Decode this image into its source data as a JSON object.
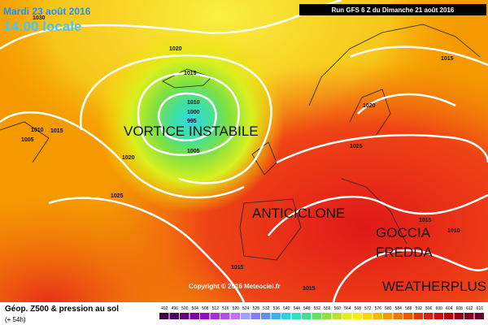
{
  "header": {
    "date": "Mardi 23 août 2016",
    "time": "14:00 locale",
    "run": "Run GFS 6 Z du Dimanche 21 août 2016"
  },
  "annotations": {
    "vortex": "VORTICE INSTABILE",
    "anticyclone": "ANTICICLONE",
    "cold_drop_1": "GOCCIA",
    "cold_drop_2": "FREDDA",
    "brand": "WEATHERPLUS",
    "copyright": "Copyright © 2016 Meteociel.fr"
  },
  "isobar_labels": [
    "1030",
    "1020",
    "1015",
    "1010",
    "1000",
    "995",
    "1005",
    "1010",
    "1015",
    "1005",
    "1020",
    "1025",
    "1015",
    "1020",
    "1025",
    "1015",
    "1015",
    "1015",
    "1010"
  ],
  "legend": {
    "title": "Géop. Z500 & pression au sol",
    "lead": "(+ 54h)"
  },
  "colorbar": {
    "labels": [
      492,
      496,
      500,
      504,
      508,
      512,
      516,
      520,
      524,
      528,
      532,
      536,
      540,
      544,
      548,
      552,
      556,
      560,
      564,
      568,
      572,
      576,
      580,
      584,
      588,
      592,
      596,
      600,
      604,
      608,
      612,
      616
    ],
    "colors": [
      "#3a0040",
      "#500060",
      "#680080",
      "#8000a0",
      "#9010c0",
      "#a030d8",
      "#b050e8",
      "#c070f0",
      "#a0a0ff",
      "#8080f0",
      "#6090f0",
      "#40b0f0",
      "#30d0e0",
      "#30e0c0",
      "#40e090",
      "#60e060",
      "#90e040",
      "#c0e030",
      "#e0f020",
      "#f8f000",
      "#f8d800",
      "#f8b800",
      "#f89800",
      "#f07800",
      "#e85800",
      "#e03800",
      "#d82010",
      "#c81010",
      "#b00010",
      "#980018",
      "#800020",
      "#680028"
    ]
  }
}
